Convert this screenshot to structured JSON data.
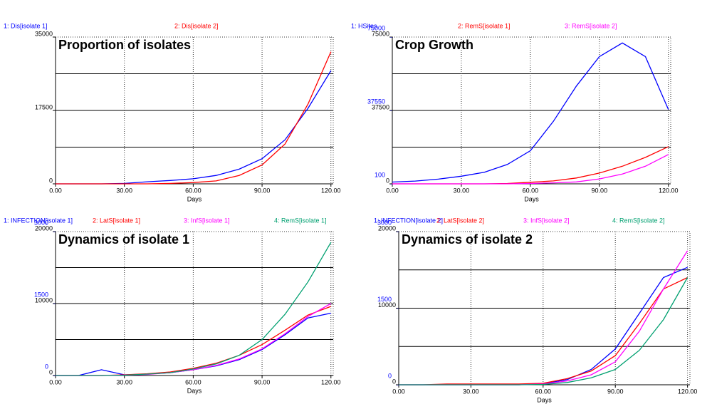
{
  "chart_data": [
    {
      "type": "line",
      "title": "Proportion of isolates",
      "x_label": "Days",
      "x": [
        0,
        10,
        20,
        30,
        40,
        50,
        60,
        70,
        80,
        90,
        100,
        110,
        120
      ],
      "xlim": [
        0,
        121
      ],
      "xticks": [
        {
          "value": 0,
          "label": "0.00"
        },
        {
          "value": 30,
          "label": "30.00"
        },
        {
          "value": 60,
          "label": "60.00"
        },
        {
          "value": 90,
          "label": "90.00"
        },
        {
          "value": 120,
          "label": "120.00"
        }
      ],
      "ylim": [
        0,
        35000
      ],
      "yticks": [
        0,
        17500,
        35000
      ],
      "ygrid": [
        8750,
        17500,
        26250
      ],
      "series": [
        {
          "name": "1: Dis[isolate 1]",
          "color": "#0000ff",
          "values": [
            0,
            0,
            0,
            100,
            500,
            800,
            1200,
            2000,
            3500,
            6000,
            10500,
            18000,
            27000
          ]
        },
        {
          "name": "2: Dis[isolate 2]",
          "color": "#ff0000",
          "values": [
            0,
            0,
            0,
            0,
            0,
            100,
            300,
            700,
            2000,
            4500,
            9500,
            19000,
            31500
          ]
        }
      ]
    },
    {
      "type": "line",
      "title": "Crop Growth",
      "x_label": "Days",
      "x": [
        0,
        10,
        20,
        30,
        40,
        50,
        60,
        70,
        80,
        90,
        100,
        110,
        120
      ],
      "xlim": [
        0,
        121
      ],
      "xticks": [
        {
          "value": 0,
          "label": "0.00"
        },
        {
          "value": 30,
          "label": "30.00"
        },
        {
          "value": 60,
          "label": "60.00"
        },
        {
          "value": 90,
          "label": "90.00"
        },
        {
          "value": 120,
          "label": "120.00"
        }
      ],
      "ylim": [
        0,
        75000
      ],
      "yticks": [
        0,
        37500,
        75000
      ],
      "ygrid": [
        18750,
        37500,
        56250
      ],
      "y2lim": [
        100,
        75000
      ],
      "y2ticks": [
        100,
        37550,
        75000
      ],
      "series": [
        {
          "name": "1: HSites",
          "color": "#0000ff",
          "axis": "y2",
          "values": [
            1000,
            1500,
            2500,
            4000,
            6000,
            10000,
            17000,
            32000,
            50000,
            65000,
            72000,
            65000,
            38000
          ]
        },
        {
          "name": "2: RemS[isolate 1]",
          "color": "#ff0000",
          "values": [
            0,
            0,
            0,
            0,
            0,
            200,
            800,
            1500,
            3000,
            5500,
            9000,
            13500,
            19000
          ]
        },
        {
          "name": "3: RemS[isolate 2]",
          "color": "#ff00ff",
          "values": [
            0,
            0,
            0,
            0,
            0,
            0,
            200,
            500,
            1000,
            2500,
            5000,
            9000,
            15000
          ]
        }
      ]
    },
    {
      "type": "line",
      "title": "Dynamics of isolate 1",
      "x_label": "Days",
      "x": [
        0,
        10,
        20,
        30,
        40,
        50,
        60,
        70,
        80,
        90,
        100,
        110,
        120
      ],
      "xlim": [
        0,
        121
      ],
      "xticks": [
        {
          "value": 0,
          "label": "0.00"
        },
        {
          "value": 30,
          "label": "30.00"
        },
        {
          "value": 60,
          "label": "60.00"
        },
        {
          "value": 90,
          "label": "90.00"
        },
        {
          "value": 120,
          "label": "120.00"
        }
      ],
      "ylim": [
        0,
        20000
      ],
      "yticks": [
        0,
        10000,
        20000
      ],
      "ygrid": [
        5000,
        10000,
        15000
      ],
      "y2lim": [
        0,
        3000
      ],
      "y2ticks": [
        0,
        1500,
        3000
      ],
      "series": [
        {
          "name": "1: INFECTION[isolate 1]",
          "color": "#0000ff",
          "axis": "y2",
          "values": [
            0,
            0,
            120,
            15,
            30,
            60,
            120,
            200,
            330,
            540,
            850,
            1200,
            1300
          ]
        },
        {
          "name": "2: LatS[isolate 1]",
          "color": "#ff0000",
          "values": [
            0,
            0,
            0,
            100,
            250,
            500,
            1000,
            1700,
            2800,
            4300,
            6300,
            8400,
            9600
          ]
        },
        {
          "name": "3: InfS[isolate 1]",
          "color": "#ff00ff",
          "values": [
            0,
            0,
            0,
            50,
            150,
            400,
            800,
            1400,
            2300,
            3700,
            5800,
            8200,
            10000
          ]
        },
        {
          "name": "4: RemS[isolate 1]",
          "color": "#00a070",
          "values": [
            0,
            0,
            0,
            50,
            200,
            400,
            900,
            1600,
            2800,
            5000,
            8500,
            13000,
            18500
          ]
        }
      ]
    },
    {
      "type": "line",
      "title": "Dynamics of isolate 2",
      "x_label": "Days",
      "x": [
        0,
        10,
        20,
        30,
        40,
        50,
        60,
        70,
        80,
        90,
        100,
        110,
        120
      ],
      "xlim": [
        0,
        121
      ],
      "xticks": [
        {
          "value": 0,
          "label": "0.00"
        },
        {
          "value": 30,
          "label": "30.00"
        },
        {
          "value": 60,
          "label": "60.00"
        },
        {
          "value": 90,
          "label": "90.00"
        },
        {
          "value": 120,
          "label": "120.00"
        }
      ],
      "ylim": [
        0,
        20000
      ],
      "yticks": [
        0,
        10000,
        20000
      ],
      "ygrid": [
        5000,
        10000,
        15000
      ],
      "y2lim": [
        0,
        3000
      ],
      "y2ticks": [
        0,
        1500,
        3000
      ],
      "series": [
        {
          "name": "1: INFECTION[isolate 2]",
          "color": "#0000ff",
          "axis": "y2",
          "values": [
            0,
            0,
            0,
            0,
            0,
            0,
            20,
            100,
            300,
            700,
            1400,
            2100,
            2300
          ]
        },
        {
          "name": "2: LatS[isolate 2]",
          "color": "#ff0000",
          "values": [
            0,
            0,
            100,
            100,
            100,
            100,
            200,
            800,
            1800,
            3800,
            8000,
            12500,
            14000
          ]
        },
        {
          "name": "3: InfS[isolate 2]",
          "color": "#ff00ff",
          "values": [
            0,
            0,
            0,
            0,
            0,
            0,
            100,
            500,
            1300,
            3000,
            7000,
            12500,
            17500
          ]
        },
        {
          "name": "4: RemS[isolate 2]",
          "color": "#00a070",
          "values": [
            0,
            0,
            0,
            0,
            0,
            0,
            50,
            300,
            900,
            2000,
            4500,
            8500,
            14000
          ]
        }
      ]
    }
  ]
}
